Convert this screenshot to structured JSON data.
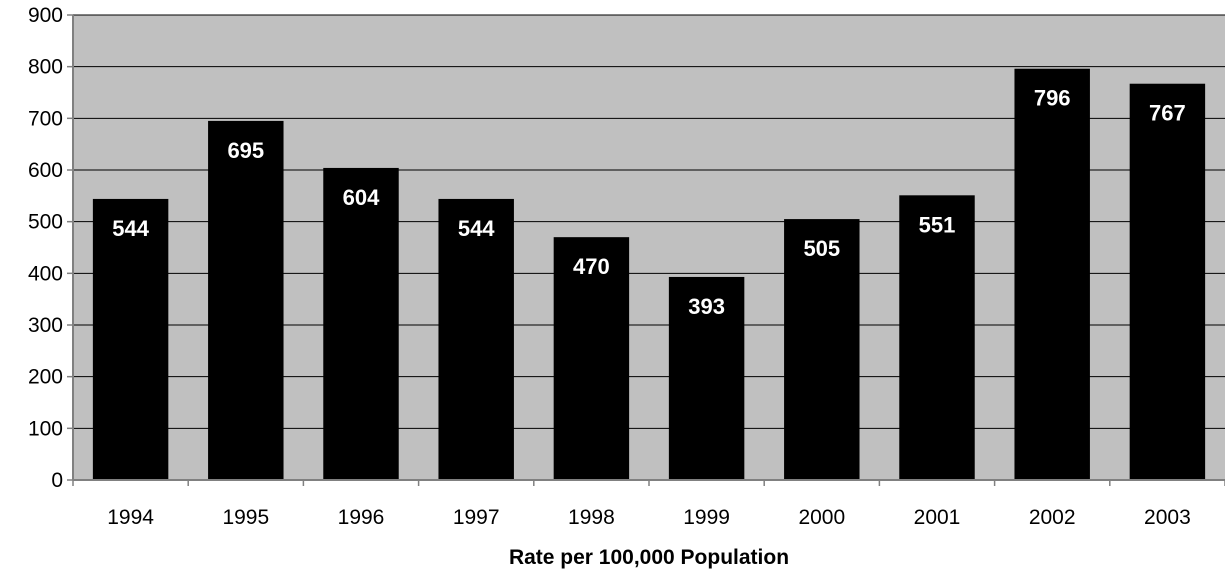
{
  "chart_data": {
    "type": "bar",
    "categories": [
      "1994",
      "1995",
      "1996",
      "1997",
      "1998",
      "1999",
      "2000",
      "2001",
      "2002",
      "2003"
    ],
    "values": [
      544,
      695,
      604,
      544,
      470,
      393,
      505,
      551,
      796,
      767
    ],
    "data_labels": [
      "544",
      "695",
      "604",
      "544",
      "470",
      "393",
      "505",
      "551",
      "796",
      "767"
    ],
    "title": "",
    "xlabel": "Rate per 100,000 Population",
    "ylabel": "",
    "ylim": [
      0,
      900
    ],
    "yticks": [
      "0",
      "100",
      "200",
      "300",
      "400",
      "500",
      "600",
      "700",
      "800",
      "900"
    ],
    "yticks_values": [
      0,
      100,
      200,
      300,
      400,
      500,
      600,
      700,
      800,
      900
    ],
    "grid": true,
    "legend": "none",
    "colors": {
      "plot_background": "#c0c0c0",
      "bar_fill": "#000000",
      "data_label": "#ffffff",
      "gridline": "#000000",
      "axis": "#808080"
    }
  }
}
